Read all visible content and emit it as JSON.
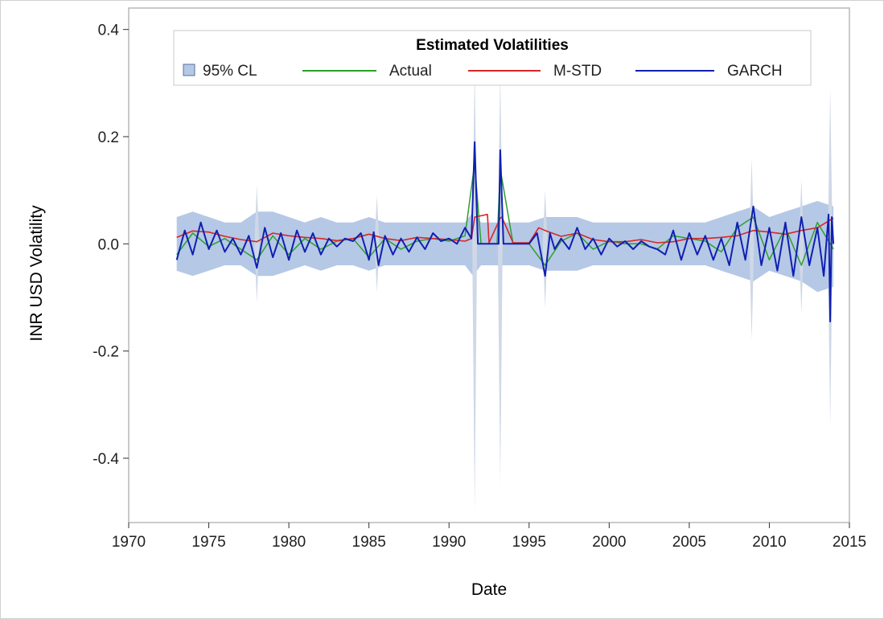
{
  "chart_data": {
    "type": "line",
    "title": "",
    "xlabel": "Date",
    "ylabel": "INR USD Volatility",
    "xlim": [
      1970,
      2015
    ],
    "ylim": [
      -0.52,
      0.44
    ],
    "xticks": [
      "1970",
      "1975",
      "1980",
      "1985",
      "1990",
      "1995",
      "2000",
      "2005",
      "2010",
      "2015"
    ],
    "yticks": [
      "-0.4",
      "-0.2",
      "0.0",
      "0.2",
      "0.4"
    ],
    "grid": false,
    "legend": {
      "title": "Estimated Volatilities",
      "placement": "top-center",
      "entries": [
        "95% CL",
        "Actual",
        "M-STD",
        "GARCH"
      ]
    },
    "colors": {
      "cl_band": "#b5c8e6",
      "cl_spike": "#cfd8e6",
      "actual": "#2ca02c",
      "mstd": "#d62728",
      "garch": "#1020b0"
    },
    "band": {
      "name": "95% CL",
      "x": [
        1973.0,
        1974.0,
        1975.0,
        1976.0,
        1977.0,
        1978.0,
        1979.0,
        1980.0,
        1981.0,
        1982.0,
        1983.0,
        1984.0,
        1985.0,
        1986.0,
        1987.0,
        1988.0,
        1989.0,
        1990.0,
        1991.0,
        1991.5,
        1992.0,
        1993.0,
        1994.0,
        1995.0,
        1996.0,
        1997.0,
        1998.0,
        1999.0,
        2000.0,
        2001.0,
        2002.0,
        2003.0,
        2004.0,
        2005.0,
        2006.0,
        2007.0,
        2008.0,
        2009.0,
        2010.0,
        2011.0,
        2012.0,
        2013.0,
        2014.0
      ],
      "upper": [
        0.05,
        0.06,
        0.05,
        0.04,
        0.04,
        0.06,
        0.06,
        0.05,
        0.04,
        0.05,
        0.04,
        0.04,
        0.05,
        0.04,
        0.04,
        0.04,
        0.04,
        0.04,
        0.04,
        0.06,
        0.04,
        0.04,
        0.04,
        0.04,
        0.05,
        0.05,
        0.05,
        0.04,
        0.04,
        0.04,
        0.04,
        0.04,
        0.04,
        0.04,
        0.04,
        0.05,
        0.06,
        0.07,
        0.05,
        0.06,
        0.07,
        0.08,
        0.07
      ],
      "lower": [
        -0.05,
        -0.06,
        -0.05,
        -0.04,
        -0.04,
        -0.06,
        -0.06,
        -0.05,
        -0.04,
        -0.05,
        -0.04,
        -0.04,
        -0.05,
        -0.04,
        -0.04,
        -0.04,
        -0.04,
        -0.04,
        -0.04,
        -0.06,
        -0.04,
        -0.04,
        -0.04,
        -0.04,
        -0.05,
        -0.05,
        -0.05,
        -0.04,
        -0.04,
        -0.04,
        -0.04,
        -0.04,
        -0.04,
        -0.04,
        -0.04,
        -0.05,
        -0.06,
        -0.07,
        -0.05,
        -0.06,
        -0.07,
        -0.09,
        -0.08
      ],
      "spikes": [
        {
          "x": 1991.6,
          "upper": 0.33,
          "lower": -0.5
        },
        {
          "x": 1993.2,
          "upper": 0.32,
          "lower": -0.45
        },
        {
          "x": 2013.8,
          "upper": 0.29,
          "lower": -0.34
        },
        {
          "x": 2008.9,
          "upper": 0.16,
          "lower": -0.18
        },
        {
          "x": 1978.0,
          "upper": 0.11,
          "lower": -0.11
        },
        {
          "x": 1985.5,
          "upper": 0.09,
          "lower": -0.09
        },
        {
          "x": 1996.0,
          "upper": 0.1,
          "lower": -0.12
        },
        {
          "x": 2012.0,
          "upper": 0.12,
          "lower": -0.13
        }
      ]
    },
    "series": [
      {
        "name": "M-STD",
        "x": [
          1973.0,
          1974.0,
          1975.0,
          1976.0,
          1977.0,
          1978.0,
          1979.0,
          1980.0,
          1981.0,
          1982.0,
          1983.0,
          1984.0,
          1985.0,
          1986.0,
          1987.0,
          1988.0,
          1989.0,
          1990.0,
          1991.0,
          1991.4,
          1991.6,
          1992.4,
          1992.5,
          1993.2,
          1993.3,
          1994.0,
          1995.0,
          1995.6,
          1996.0,
          1997.0,
          1998.0,
          1999.0,
          2000.0,
          2001.0,
          2002.0,
          2003.0,
          2004.0,
          2005.0,
          2006.0,
          2007.0,
          2008.0,
          2009.0,
          2010.0,
          2011.0,
          2012.0,
          2013.0,
          2014.0
        ],
        "values": [
          0.012,
          0.024,
          0.022,
          0.014,
          0.008,
          0.004,
          0.02,
          0.015,
          0.012,
          0.01,
          0.006,
          0.01,
          0.018,
          0.01,
          0.006,
          0.012,
          0.01,
          0.008,
          0.005,
          0.01,
          0.05,
          0.055,
          0.002,
          0.048,
          0.05,
          0.002,
          0.002,
          0.03,
          0.025,
          0.014,
          0.02,
          0.008,
          0.004,
          0.004,
          0.008,
          0.002,
          0.004,
          0.01,
          0.01,
          0.012,
          0.015,
          0.025,
          0.022,
          0.018,
          0.025,
          0.03,
          0.048
        ]
      },
      {
        "name": "GARCH",
        "x": [
          1973.0,
          1973.5,
          1974.0,
          1974.5,
          1975.0,
          1975.5,
          1976.0,
          1976.5,
          1977.0,
          1977.5,
          1978.0,
          1978.5,
          1979.0,
          1979.5,
          1980.0,
          1980.5,
          1981.0,
          1981.5,
          1982.0,
          1982.5,
          1983.0,
          1983.5,
          1984.0,
          1984.5,
          1985.0,
          1985.3,
          1985.6,
          1986.0,
          1986.5,
          1987.0,
          1987.5,
          1988.0,
          1988.5,
          1989.0,
          1989.5,
          1990.0,
          1990.5,
          1991.0,
          1991.4,
          1991.6,
          1991.8,
          1992.3,
          1992.8,
          1993.1,
          1993.2,
          1993.4,
          1994.0,
          1995.0,
          1995.5,
          1996.0,
          1996.3,
          1996.6,
          1997.0,
          1997.5,
          1998.0,
          1998.5,
          1999.0,
          1999.5,
          2000.0,
          2000.5,
          2001.0,
          2001.5,
          2002.0,
          2002.5,
          2003.0,
          2003.5,
          2004.0,
          2004.5,
          2005.0,
          2005.5,
          2006.0,
          2006.5,
          2007.0,
          2007.5,
          2008.0,
          2008.5,
          2009.0,
          2009.5,
          2010.0,
          2010.5,
          2011.0,
          2011.5,
          2012.0,
          2012.5,
          2013.0,
          2013.4,
          2013.7,
          2013.8,
          2013.9,
          2014.0
        ],
        "values": [
          -0.03,
          0.025,
          -0.02,
          0.04,
          -0.01,
          0.025,
          -0.015,
          0.01,
          -0.02,
          0.015,
          -0.045,
          0.03,
          -0.025,
          0.02,
          -0.03,
          0.025,
          -0.015,
          0.02,
          -0.02,
          0.01,
          -0.005,
          0.01,
          0.005,
          0.02,
          -0.03,
          0.022,
          -0.04,
          0.015,
          -0.02,
          0.01,
          -0.015,
          0.012,
          -0.01,
          0.02,
          0.005,
          0.01,
          0.0,
          0.03,
          0.01,
          0.19,
          0.0,
          0.0,
          0.0,
          0.0,
          0.175,
          0.0,
          0.0,
          0.0,
          0.02,
          -0.06,
          0.02,
          -0.01,
          0.01,
          -0.01,
          0.03,
          -0.01,
          0.01,
          -0.02,
          0.01,
          -0.005,
          0.005,
          -0.01,
          0.005,
          -0.005,
          -0.01,
          -0.02,
          0.025,
          -0.03,
          0.02,
          -0.02,
          0.015,
          -0.03,
          0.01,
          -0.04,
          0.04,
          -0.03,
          0.07,
          -0.04,
          0.03,
          -0.05,
          0.04,
          -0.06,
          0.05,
          -0.04,
          0.03,
          -0.06,
          0.055,
          -0.145,
          0.05,
          0.0
        ]
      },
      {
        "name": "Actual",
        "x": [
          1973.0,
          1974.0,
          1975.0,
          1976.0,
          1977.0,
          1978.0,
          1979.0,
          1980.0,
          1981.0,
          1982.0,
          1983.0,
          1984.0,
          1985.0,
          1986.0,
          1987.0,
          1988.0,
          1989.0,
          1990.0,
          1991.0,
          1991.6,
          1992.0,
          1993.0,
          1993.2,
          1994.0,
          1995.0,
          1996.0,
          1997.0,
          1998.0,
          1999.0,
          2000.0,
          2001.0,
          2002.0,
          2003.0,
          2004.0,
          2005.0,
          2006.0,
          2007.0,
          2008.0,
          2009.0,
          2010.0,
          2011.0,
          2012.0,
          2013.0,
          2014.0
        ],
        "values": [
          -0.02,
          0.02,
          -0.005,
          0.01,
          -0.01,
          -0.03,
          0.015,
          -0.02,
          0.01,
          -0.01,
          0.005,
          0.01,
          -0.025,
          0.01,
          -0.01,
          0.005,
          0.01,
          0.005,
          0.015,
          0.15,
          0.0,
          0.0,
          0.14,
          0.0,
          0.0,
          -0.04,
          0.005,
          0.02,
          -0.01,
          0.005,
          0.0,
          0.0,
          -0.01,
          0.015,
          0.01,
          0.005,
          -0.015,
          0.03,
          0.05,
          -0.03,
          0.03,
          -0.04,
          0.04,
          -0.01
        ]
      }
    ]
  }
}
